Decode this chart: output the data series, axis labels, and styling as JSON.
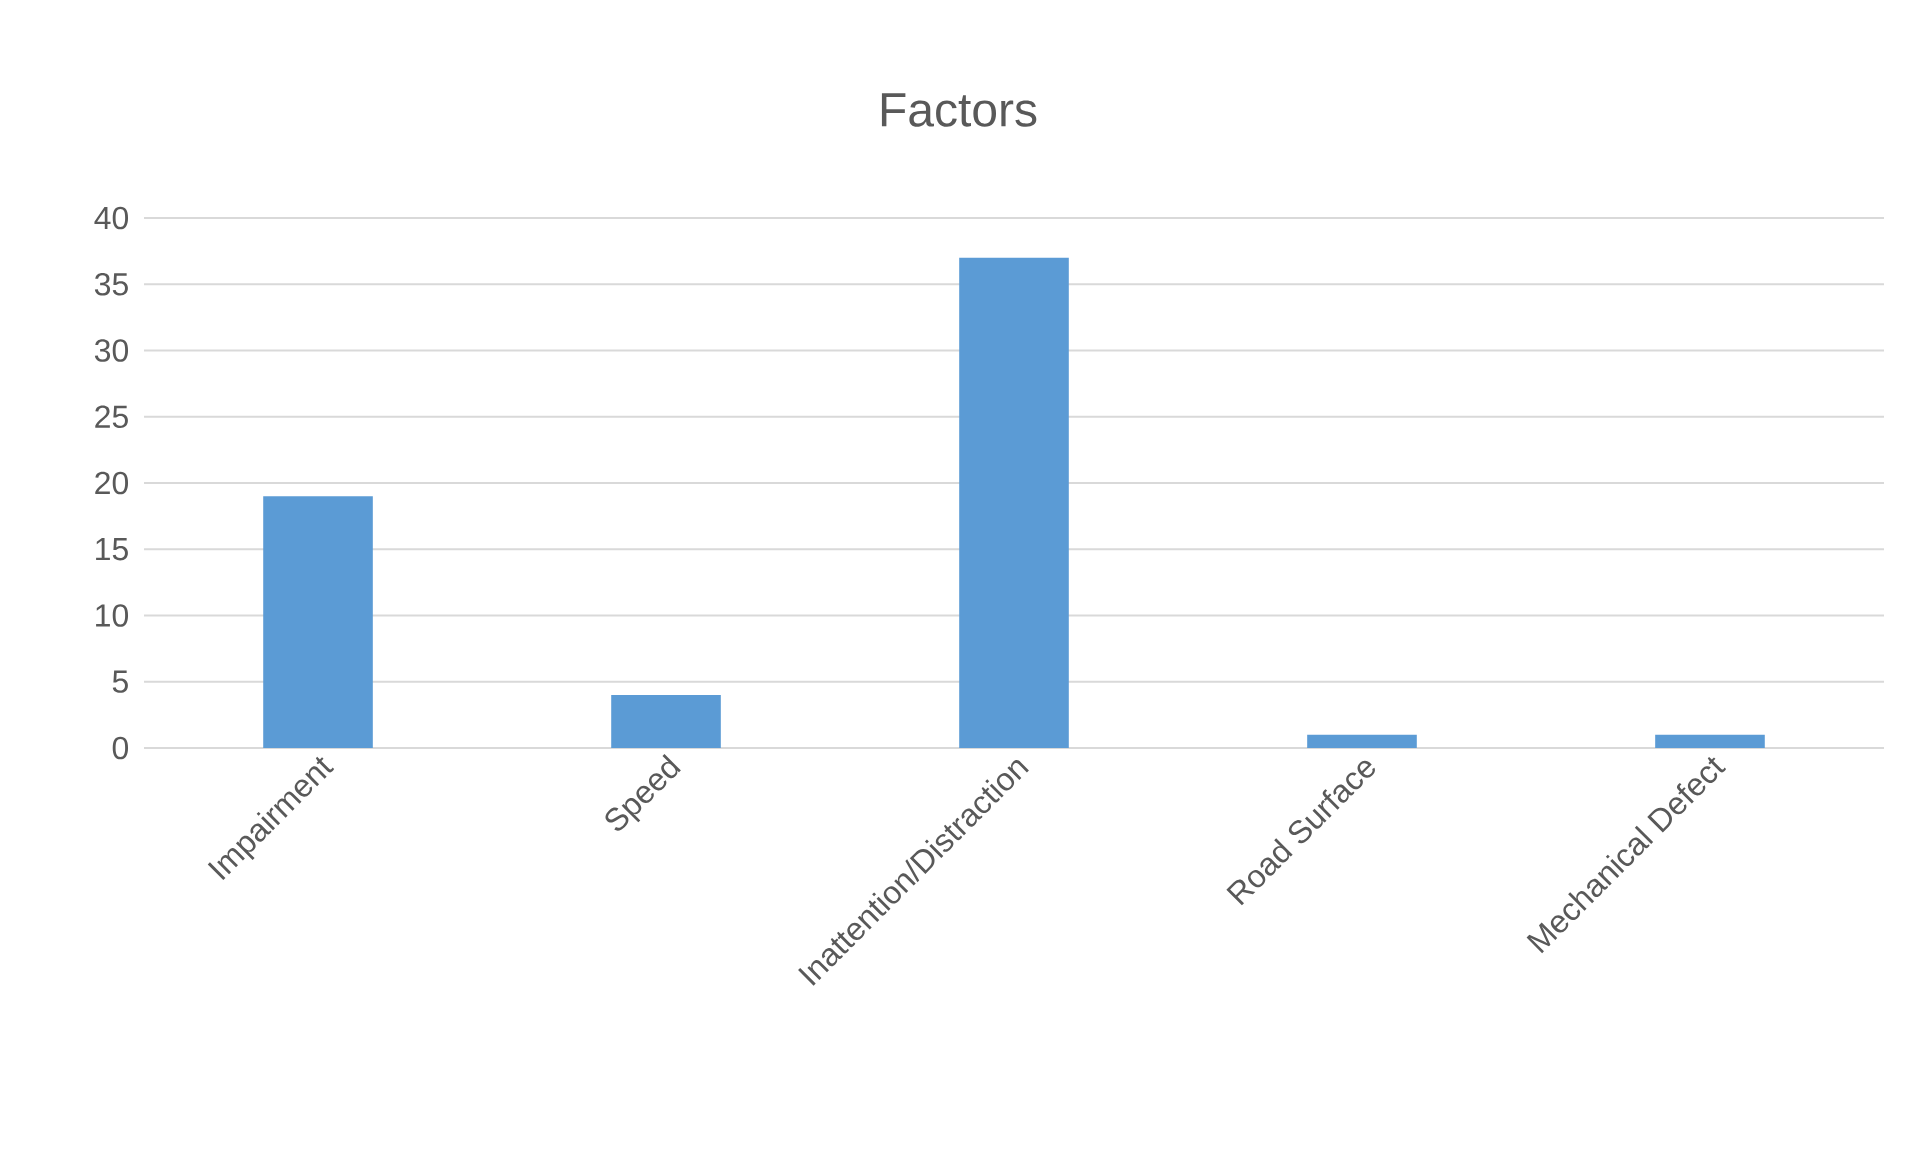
{
  "chart_data": {
    "type": "bar",
    "title": "Factors",
    "categories": [
      "Impairment",
      "Speed",
      "Inattention/Distraction",
      "Road Surface",
      "Mechanical Defect"
    ],
    "values": [
      19,
      4,
      37,
      1,
      1
    ],
    "color": "#5b9bd5",
    "ylim": [
      0,
      40
    ],
    "yticks": [
      0,
      5,
      10,
      15,
      20,
      25,
      30,
      35,
      40
    ],
    "grid": "y"
  }
}
